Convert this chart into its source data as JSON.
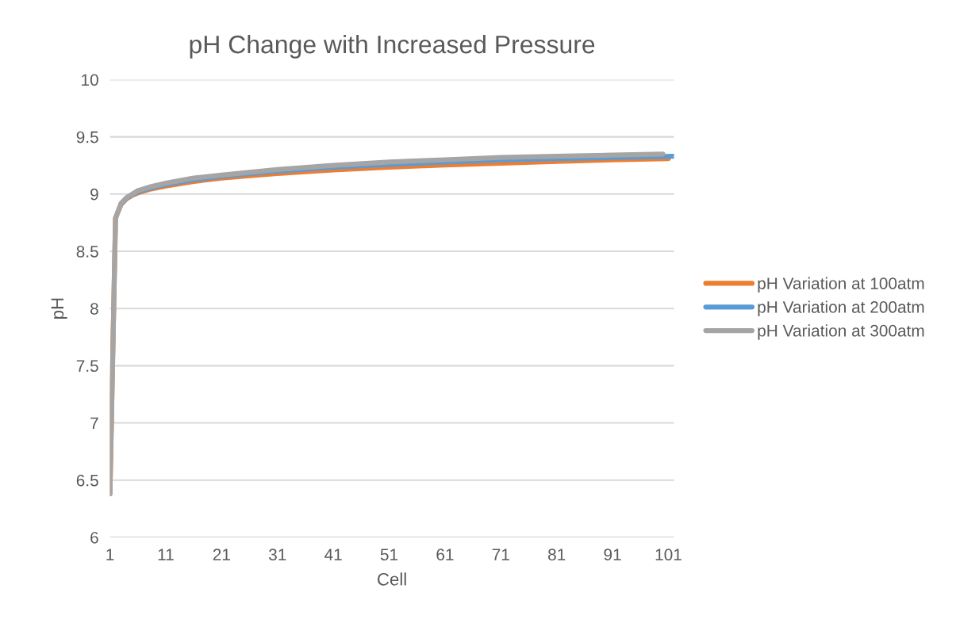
{
  "chart_data": {
    "type": "line",
    "title": "pH Change with Increased Pressure",
    "xlabel": "Cell",
    "ylabel": "pH",
    "xlim": [
      1,
      102
    ],
    "xticks": [
      1,
      11,
      21,
      31,
      41,
      51,
      61,
      71,
      81,
      91,
      101
    ],
    "ylim": [
      6,
      10
    ],
    "yticks": [
      6,
      6.5,
      7,
      7.5,
      8,
      8.5,
      9,
      9.5,
      10
    ],
    "grid": "y",
    "legend": "right",
    "marker": "none",
    "line_style": "solid",
    "series": [
      {
        "name": "pH Variation at 100atm",
        "color": "#ed7d31",
        "x": [
          1,
          2,
          3,
          4,
          5,
          6,
          8,
          11,
          16,
          21,
          26,
          31,
          41,
          51,
          61,
          71,
          81,
          91,
          101
        ],
        "values": [
          6.38,
          8.79,
          8.91,
          8.96,
          8.99,
          9.01,
          9.04,
          9.07,
          9.11,
          9.14,
          9.16,
          9.18,
          9.21,
          9.235,
          9.255,
          9.27,
          9.285,
          9.3,
          9.31
        ]
      },
      {
        "name": "pH Variation at 200atm",
        "color": "#5b9bd5",
        "x": [
          3,
          4,
          5,
          6,
          8,
          11,
          16,
          21,
          26,
          31,
          41,
          51,
          61,
          71,
          81,
          91,
          102
        ],
        "values": [
          8.915,
          8.965,
          8.995,
          9.02,
          9.05,
          9.085,
          9.125,
          9.155,
          9.18,
          9.2,
          9.235,
          9.26,
          9.28,
          9.3,
          9.31,
          9.32,
          9.33
        ]
      },
      {
        "name": "pH Variation at 300atm",
        "color": "#a5a5a5",
        "x": [
          1,
          2,
          3,
          4,
          5,
          6,
          8,
          11,
          16,
          21,
          26,
          31,
          41,
          51,
          61,
          71,
          81,
          91,
          100
        ],
        "values": [
          6.38,
          8.79,
          8.92,
          8.97,
          9.0,
          9.03,
          9.06,
          9.095,
          9.14,
          9.166,
          9.19,
          9.215,
          9.25,
          9.28,
          9.3,
          9.32,
          9.33,
          9.34,
          9.35
        ]
      }
    ]
  }
}
